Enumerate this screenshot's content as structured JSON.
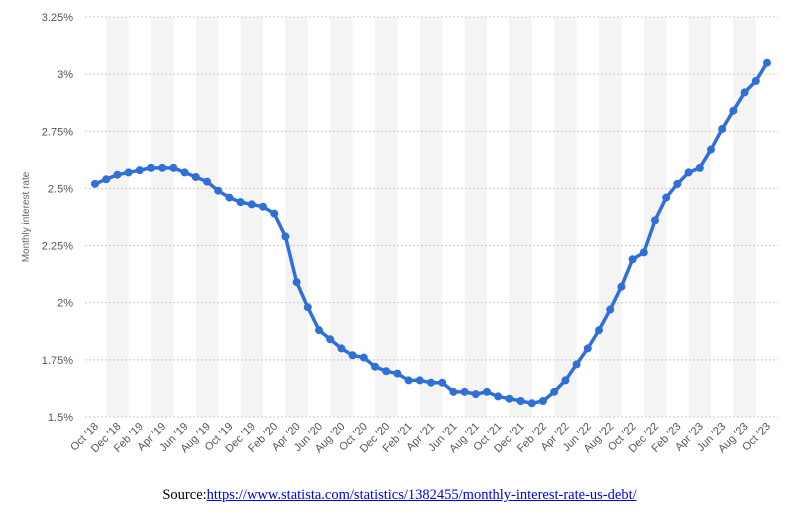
{
  "chart_data": {
    "type": "line",
    "title": "",
    "xlabel": "",
    "ylabel": "Monthly interest rate",
    "ylim": [
      1.5,
      3.25
    ],
    "yticks": [
      1.5,
      1.75,
      2,
      2.25,
      2.5,
      2.75,
      3,
      3.25
    ],
    "ytick_labels": [
      "1.5%",
      "1.75%",
      "2%",
      "2.25%",
      "2.5%",
      "2.75%",
      "3%",
      "3.25%"
    ],
    "xtick_labels": [
      "Oct '18",
      "Dec '18",
      "Feb '19",
      "Apr '19",
      "Jun '19",
      "Aug '19",
      "Oct '19",
      "Dec '19",
      "Feb '20",
      "Apr '20",
      "Jun '20",
      "Aug '20",
      "Oct '20",
      "Dec '20",
      "Feb '21",
      "Apr '21",
      "Jun '21",
      "Aug '21",
      "Oct '21",
      "Dec '21",
      "Feb '22",
      "Apr '22",
      "Jun '22",
      "Aug '22",
      "Oct '22",
      "Dec '22",
      "Feb '23",
      "Apr '23",
      "Jun '23",
      "Aug '23",
      "Oct '23"
    ],
    "grid": "horizontal dashed",
    "line_color": "#2f6fd6",
    "series": [
      {
        "values": [
          2.52,
          2.54,
          2.56,
          2.57,
          2.58,
          2.59,
          2.59,
          2.59,
          2.57,
          2.55,
          2.53,
          2.49,
          2.46,
          2.44,
          2.43,
          2.42,
          2.39,
          2.29,
          2.09,
          1.98,
          1.88,
          1.84,
          1.8,
          1.77,
          1.76,
          1.72,
          1.7,
          1.69,
          1.66,
          1.66,
          1.65,
          1.65,
          1.61,
          1.61,
          1.6,
          1.61,
          1.59,
          1.58,
          1.57,
          1.56,
          1.57,
          1.61,
          1.66,
          1.73,
          1.8,
          1.88,
          1.97,
          2.07,
          2.19,
          2.22,
          2.36,
          2.46,
          2.52,
          2.57,
          2.59,
          2.67,
          2.76,
          2.84,
          2.92,
          2.97,
          3.05
        ]
      }
    ]
  },
  "source": {
    "prefix": "Source:",
    "url_text": "https://www.statista.com/statistics/1382455/monthly-interest-rate-us-debt/"
  }
}
